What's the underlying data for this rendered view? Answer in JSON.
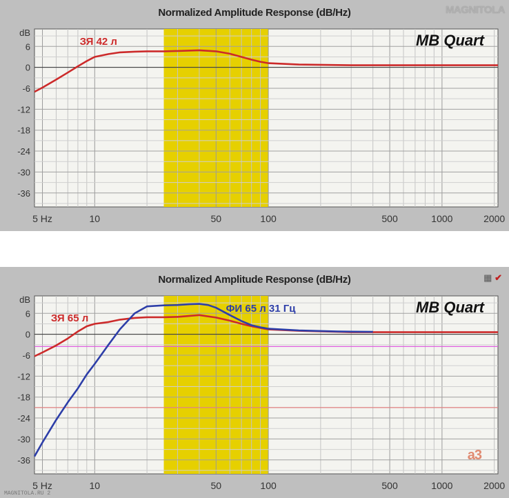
{
  "logo": {
    "text": "MAGNITOLA"
  },
  "footer": {
    "text": "MAGNITOLA.RU 2"
  },
  "chart_data": [
    {
      "type": "line",
      "title": "Normalized Amplitude Response (dB/Hz)",
      "x_scale": "log",
      "xlim": [
        4.5,
        2100
      ],
      "ylim": [
        -40,
        11
      ],
      "x_ticks": [
        {
          "value": 5,
          "label": "5 Hz"
        },
        {
          "value": 10,
          "label": "10"
        },
        {
          "value": 50,
          "label": "50"
        },
        {
          "value": 100,
          "label": "100"
        },
        {
          "value": 500,
          "label": "500"
        },
        {
          "value": 1000,
          "label": "1000"
        },
        {
          "value": 2000,
          "label": "2000"
        }
      ],
      "y_ticks": [
        {
          "value": 10,
          "label": "dB"
        },
        {
          "value": 6,
          "label": "6"
        },
        {
          "value": 0,
          "label": "0"
        },
        {
          "value": -6,
          "label": "-6"
        },
        {
          "value": -12,
          "label": "-12"
        },
        {
          "value": -18,
          "label": "-18"
        },
        {
          "value": -24,
          "label": "-24"
        },
        {
          "value": -30,
          "label": "-30"
        },
        {
          "value": -36,
          "label": "-36"
        }
      ],
      "highlight_band": {
        "x": [
          25,
          100
        ],
        "color": "#e6d000"
      },
      "grid": true,
      "brand_label": "MB Quart",
      "series": [
        {
          "name": "ЗЯ 42 л",
          "color": "#cc2a2a",
          "label_at": [
            8.2,
            6.5
          ],
          "points": [
            [
              4.5,
              -7
            ],
            [
              5,
              -5.8
            ],
            [
              6,
              -3.5
            ],
            [
              7,
              -1.5
            ],
            [
              8,
              0.3
            ],
            [
              9,
              1.8
            ],
            [
              10,
              3.0
            ],
            [
              12,
              3.8
            ],
            [
              14,
              4.3
            ],
            [
              17,
              4.5
            ],
            [
              20,
              4.6
            ],
            [
              25,
              4.6
            ],
            [
              30,
              4.7
            ],
            [
              40,
              4.9
            ],
            [
              50,
              4.6
            ],
            [
              60,
              3.9
            ],
            [
              70,
              3.0
            ],
            [
              80,
              2.2
            ],
            [
              90,
              1.6
            ],
            [
              100,
              1.2
            ],
            [
              150,
              0.8
            ],
            [
              300,
              0.6
            ],
            [
              2100,
              0.6
            ]
          ]
        }
      ]
    },
    {
      "type": "line",
      "title": "Normalized Amplitude Response (dB/Hz)",
      "x_scale": "log",
      "xlim": [
        4.5,
        2100
      ],
      "ylim": [
        -40,
        11
      ],
      "x_ticks": [
        {
          "value": 5,
          "label": "5 Hz"
        },
        {
          "value": 10,
          "label": "10"
        },
        {
          "value": 50,
          "label": "50"
        },
        {
          "value": 100,
          "label": "100"
        },
        {
          "value": 500,
          "label": "500"
        },
        {
          "value": 1000,
          "label": "1000"
        },
        {
          "value": 2000,
          "label": "2000"
        }
      ],
      "y_ticks": [
        {
          "value": 10,
          "label": "dB"
        },
        {
          "value": 6,
          "label": "6"
        },
        {
          "value": 0,
          "label": "0"
        },
        {
          "value": -6,
          "label": "-6"
        },
        {
          "value": -12,
          "label": "-12"
        },
        {
          "value": -18,
          "label": "-18"
        },
        {
          "value": -24,
          "label": "-24"
        },
        {
          "value": -30,
          "label": "-30"
        },
        {
          "value": -36,
          "label": "-36"
        }
      ],
      "highlight_band": {
        "x": [
          25,
          100
        ],
        "color": "#e6d000"
      },
      "grid": true,
      "brand_label": "MB Quart",
      "corner_mark": "a3",
      "reference_lines": [
        {
          "y": -3.5,
          "color": "#e060e0"
        },
        {
          "y": -21,
          "color": "#e08080"
        }
      ],
      "series": [
        {
          "name": "ЗЯ 65 л",
          "color": "#cc2a2a",
          "label_at": [
            5.6,
            3.7
          ],
          "points": [
            [
              4.5,
              -6.3
            ],
            [
              5,
              -5.2
            ],
            [
              6,
              -3.2
            ],
            [
              7,
              -1.2
            ],
            [
              8,
              0.8
            ],
            [
              9,
              2.3
            ],
            [
              10,
              3.0
            ],
            [
              12,
              3.5
            ],
            [
              14,
              4.2
            ],
            [
              17,
              4.7
            ],
            [
              20,
              4.9
            ],
            [
              25,
              4.9
            ],
            [
              30,
              5.0
            ],
            [
              40,
              5.5
            ],
            [
              50,
              4.8
            ],
            [
              60,
              3.9
            ],
            [
              70,
              3.0
            ],
            [
              80,
              2.3
            ],
            [
              90,
              1.8
            ],
            [
              100,
              1.4
            ],
            [
              150,
              1.0
            ],
            [
              300,
              0.6
            ],
            [
              2100,
              0.6
            ]
          ]
        },
        {
          "name": "ФИ 65 л 31 Гц",
          "color": "#2d3ea8",
          "label_at": [
            57,
            6.5
          ],
          "points": [
            [
              4.5,
              -35
            ],
            [
              5,
              -31
            ],
            [
              6,
              -24.5
            ],
            [
              7,
              -19.5
            ],
            [
              8,
              -15.5
            ],
            [
              9,
              -11.5
            ],
            [
              10,
              -8.5
            ],
            [
              12,
              -3.0
            ],
            [
              14,
              1.5
            ],
            [
              17,
              6.0
            ],
            [
              20,
              8.0
            ],
            [
              25,
              8.3
            ],
            [
              30,
              8.4
            ],
            [
              35,
              8.6
            ],
            [
              40,
              8.7
            ],
            [
              45,
              8.4
            ],
            [
              50,
              7.6
            ],
            [
              60,
              5.5
            ],
            [
              70,
              3.8
            ],
            [
              80,
              2.6
            ],
            [
              90,
              2.0
            ],
            [
              100,
              1.6
            ],
            [
              150,
              1.1
            ],
            [
              250,
              0.8
            ],
            [
              400,
              0.7
            ]
          ]
        }
      ]
    }
  ]
}
